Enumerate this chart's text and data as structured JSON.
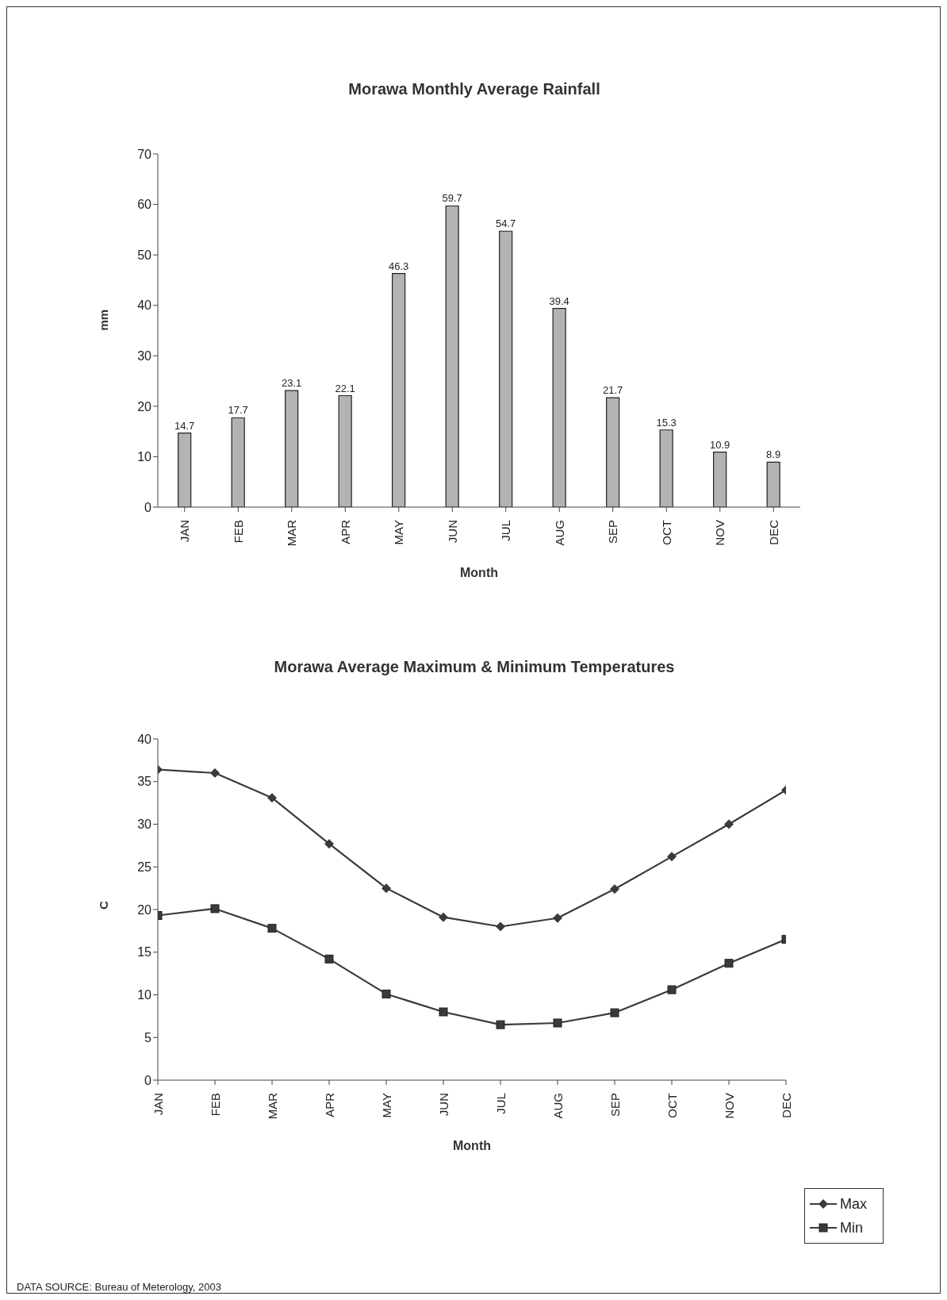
{
  "chart_data": [
    {
      "type": "bar",
      "title": "Morawa Monthly Average Rainfall",
      "xlabel": "Month",
      "ylabel": "mm",
      "categories": [
        "JAN",
        "FEB",
        "MAR",
        "APR",
        "MAY",
        "JUN",
        "JUL",
        "AUG",
        "SEP",
        "OCT",
        "NOV",
        "DEC"
      ],
      "values": [
        14.7,
        17.7,
        23.1,
        22.1,
        46.3,
        59.7,
        54.7,
        39.4,
        21.7,
        15.3,
        10.9,
        8.9
      ],
      "color": "#b3b3b3",
      "ylim": [
        0,
        70
      ],
      "yticks": [
        0,
        10,
        20,
        30,
        40,
        50,
        60,
        70
      ],
      "data_labels": true,
      "grid": false,
      "legend": false
    },
    {
      "type": "line",
      "title": "Morawa Average Maximum & Minimum Temperatures",
      "xlabel": "Month",
      "ylabel": "C",
      "categories": [
        "JAN",
        "FEB",
        "MAR",
        "APR",
        "MAY",
        "JUN",
        "JUL",
        "AUG",
        "SEP",
        "OCT",
        "NOV",
        "DEC"
      ],
      "series": [
        {
          "name": "Max",
          "color": "#3a3a3a",
          "marker": "diamond",
          "values": [
            36.4,
            36.0,
            33.1,
            27.7,
            22.5,
            19.1,
            18.0,
            19.0,
            22.4,
            26.2,
            30.0,
            34.0
          ]
        },
        {
          "name": "Min",
          "color": "#3a3a3a",
          "marker": "square",
          "values": [
            19.3,
            20.1,
            17.8,
            14.2,
            10.1,
            8.0,
            6.5,
            6.7,
            7.9,
            10.6,
            13.7,
            16.5
          ]
        }
      ],
      "ylim": [
        0,
        40
      ],
      "yticks": [
        0,
        5,
        10,
        15,
        20,
        25,
        30,
        35,
        40
      ],
      "grid": false,
      "legend": "bottom right",
      "line_style": "solid",
      "annotations": [
        "DATA SOURCE: Bureau of Meterology, 2003"
      ]
    }
  ]
}
